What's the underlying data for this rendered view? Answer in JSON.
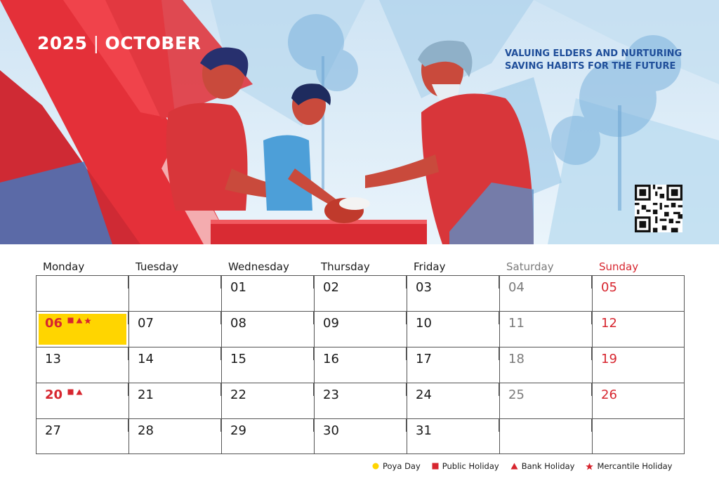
{
  "header": {
    "year": "2025",
    "separator": "|",
    "month": "OCTOBER",
    "tagline_line1": "VALUING ELDERS AND NURTURING",
    "tagline_line2": "SAVING HABITS FOR THE FUTURE"
  },
  "colors": {
    "accent_red": "#d7262f",
    "poya_yellow": "#ffd500",
    "tagline_blue": "#1f4e9a",
    "saturday_grey": "#7a7a7a"
  },
  "weekdays": [
    "Monday",
    "Tuesday",
    "Wednesday",
    "Thursday",
    "Friday",
    "Saturday",
    "Sunday"
  ],
  "weeks": [
    [
      "",
      "",
      "01",
      "02",
      "03",
      "04",
      "05"
    ],
    [
      "06",
      "07",
      "08",
      "09",
      "10",
      "11",
      "12"
    ],
    [
      "13",
      "14",
      "15",
      "16",
      "17",
      "18",
      "19"
    ],
    [
      "20",
      "21",
      "22",
      "23",
      "24",
      "25",
      "26"
    ],
    [
      "27",
      "28",
      "29",
      "30",
      "31",
      "",
      ""
    ]
  ],
  "holidays": {
    "06": [
      "public-holiday",
      "bank-holiday",
      "mercantile-holiday"
    ],
    "20": [
      "public-holiday",
      "bank-holiday"
    ]
  },
  "poya_day": "06",
  "legend": [
    {
      "icon": "circle-icon",
      "label": "Poya Day",
      "color": "#ffd500"
    },
    {
      "icon": "square-icon",
      "label": "Public Holiday",
      "color": "#d7262f"
    },
    {
      "icon": "triangle-icon",
      "label": "Bank Holiday",
      "color": "#d7262f"
    },
    {
      "icon": "star-icon",
      "label": "Mercantile Holiday",
      "color": "#d7262f"
    }
  ]
}
